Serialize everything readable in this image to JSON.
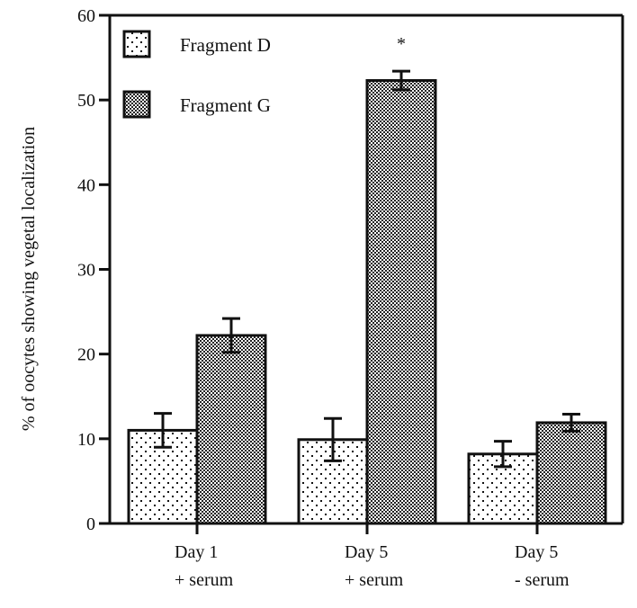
{
  "chart_data": {
    "type": "bar",
    "title": "",
    "xlabel": "",
    "ylabel": "% of oocytes showing vegetal localization",
    "ylim": [
      0,
      60
    ],
    "yticks": [
      0,
      10,
      20,
      30,
      40,
      50,
      60
    ],
    "grid": false,
    "legend_position": "top-left",
    "categories": [
      {
        "line1": "Day 1",
        "line2": "+ serum"
      },
      {
        "line1": "Day 5",
        "line2": "+ serum"
      },
      {
        "line1": "Day 5",
        "line2": "- serum"
      }
    ],
    "series": [
      {
        "name": "Fragment D",
        "pattern": "sparse-dots",
        "values": [
          11.0,
          9.9,
          8.2
        ],
        "errors": [
          2.0,
          2.5,
          1.5
        ]
      },
      {
        "name": "Fragment G",
        "pattern": "dense-checker",
        "values": [
          22.2,
          52.3,
          11.9
        ],
        "errors": [
          2.0,
          1.1,
          1.0
        ]
      }
    ],
    "annotations": [
      {
        "text": "*",
        "category_index": 1,
        "series_index": 1,
        "meaning": "significance marker"
      }
    ]
  }
}
